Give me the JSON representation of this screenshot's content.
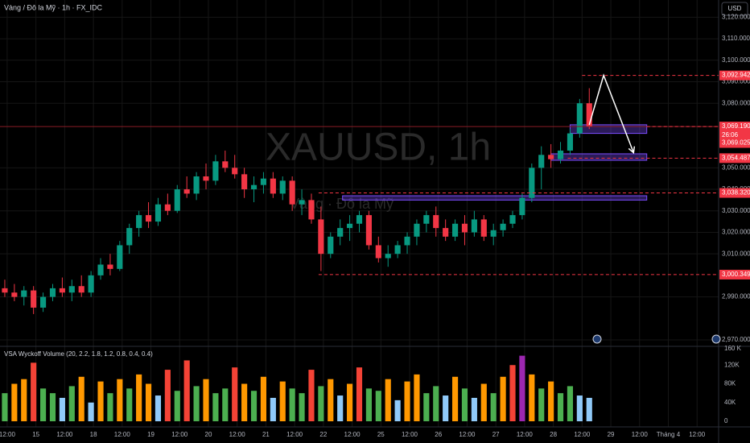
{
  "chart_data": {
    "type": "candlestick",
    "title": "Vàng / Đô la Mỹ · 1h · FX_IDC",
    "currency": "USD",
    "watermark": "XAUUSD, 1h",
    "watermark_sub": "Vàng · Đô la Mỹ",
    "up_color": "#089981",
    "down_color": "#f23645",
    "grid": true,
    "xlim": [
      0,
      300
    ],
    "ylim": [
      2967,
      3128
    ],
    "x": [
      2,
      6,
      10,
      14,
      18,
      22,
      26,
      30,
      34,
      38,
      42,
      46,
      50,
      54,
      58,
      62,
      66,
      70,
      74,
      78,
      82,
      86,
      90,
      94,
      98,
      102,
      106,
      110,
      114,
      118,
      122,
      126,
      130,
      134,
      138,
      142,
      146,
      150,
      154,
      158,
      162,
      166,
      170,
      174,
      178,
      182,
      186,
      190,
      194,
      198,
      202,
      206,
      210,
      214,
      218,
      222,
      226,
      230,
      234,
      238,
      242,
      246
    ],
    "open": [
      2994,
      2992,
      2990,
      2993,
      2985,
      2990,
      2994,
      2992,
      2995,
      2992,
      3000,
      3005,
      3003,
      3014,
      3022,
      3028,
      3025,
      3033,
      3030,
      3040,
      3038,
      3046,
      3044,
      3053,
      3050,
      3047,
      3040,
      3042,
      3045,
      3038,
      3044,
      3033,
      3035,
      3026,
      3010,
      3018,
      3022,
      3024,
      3028,
      3014,
      3008,
      3010,
      3014,
      3018,
      3024,
      3028,
      3022,
      3018,
      3024,
      3020,
      3026,
      3018,
      3021,
      3024,
      3028,
      3036,
      3050,
      3056,
      3054,
      3058,
      3066,
      3080
    ],
    "high": [
      2998,
      2996,
      2995,
      2995,
      2992,
      2996,
      2999,
      2998,
      3000,
      3002,
      3008,
      3010,
      3016,
      3024,
      3030,
      3034,
      3036,
      3038,
      3042,
      3046,
      3048,
      3052,
      3056,
      3058,
      3056,
      3050,
      3046,
      3048,
      3048,
      3046,
      3046,
      3040,
      3038,
      3032,
      3020,
      3026,
      3028,
      3030,
      3030,
      3018,
      3014,
      3016,
      3020,
      3026,
      3030,
      3032,
      3026,
      3026,
      3028,
      3030,
      3028,
      3024,
      3026,
      3030,
      3038,
      3052,
      3060,
      3061,
      3062,
      3068,
      3082,
      3087
    ],
    "low": [
      2990,
      2988,
      2986,
      2982,
      2983,
      2988,
      2990,
      2988,
      2990,
      2990,
      2998,
      3000,
      3002,
      3010,
      3018,
      3022,
      3023,
      3028,
      3029,
      3036,
      3035,
      3040,
      3042,
      3048,
      3045,
      3036,
      3034,
      3038,
      3036,
      3035,
      3030,
      3028,
      3024,
      3002,
      3008,
      3014,
      3016,
      3020,
      3012,
      3006,
      3004,
      3008,
      3010,
      3014,
      3020,
      3018,
      3016,
      3016,
      3014,
      3018,
      3016,
      3014,
      3018,
      3022,
      3026,
      3034,
      3040,
      3050,
      3052,
      3056,
      3064,
      3068
    ],
    "close": [
      2992,
      2990,
      2993,
      2985,
      2990,
      2994,
      2992,
      2995,
      2992,
      3000,
      3005,
      3003,
      3014,
      3022,
      3028,
      3025,
      3033,
      3030,
      3040,
      3038,
      3046,
      3044,
      3053,
      3050,
      3047,
      3040,
      3042,
      3045,
      3038,
      3044,
      3033,
      3035,
      3026,
      3010,
      3018,
      3022,
      3024,
      3028,
      3014,
      3008,
      3010,
      3014,
      3018,
      3024,
      3028,
      3022,
      3018,
      3024,
      3020,
      3026,
      3018,
      3021,
      3024,
      3028,
      3036,
      3050,
      3056,
      3054,
      3058,
      3066,
      3080,
      3069.19
    ],
    "volume_title": "VSA Wyckoff Volume (20, 2.2, 1.8, 1.2, 0.8, 0.4, 0.4)",
    "volume": [
      60000,
      80000,
      90000,
      125000,
      70000,
      60000,
      50000,
      75000,
      95000,
      40000,
      85000,
      60000,
      90000,
      70000,
      100000,
      80000,
      55000,
      110000,
      65000,
      130000,
      75000,
      90000,
      60000,
      70000,
      115000,
      80000,
      65000,
      95000,
      50000,
      85000,
      70000,
      60000,
      110000,
      75000,
      90000,
      55000,
      80000,
      115000,
      70000,
      65000,
      90000,
      45000,
      85000,
      100000,
      60000,
      75000,
      55000,
      95000,
      70000,
      50000,
      80000,
      60000,
      95000,
      120000,
      140000,
      100000,
      70000,
      85000,
      60000,
      75000,
      55000,
      50000
    ],
    "volume_colors": [
      "#4caf50",
      "#ff9800",
      "#ff9800",
      "#f44336",
      "#4caf50",
      "#4caf50",
      "#90caf9",
      "#4caf50",
      "#ff9800",
      "#90caf9",
      "#ff9800",
      "#4caf50",
      "#ff9800",
      "#4caf50",
      "#ff9800",
      "#ff9800",
      "#90caf9",
      "#f44336",
      "#4caf50",
      "#f44336",
      "#4caf50",
      "#ff9800",
      "#4caf50",
      "#4caf50",
      "#f44336",
      "#ff9800",
      "#4caf50",
      "#ff9800",
      "#90caf9",
      "#ff9800",
      "#4caf50",
      "#4caf50",
      "#f44336",
      "#4caf50",
      "#ff9800",
      "#90caf9",
      "#ff9800",
      "#f44336",
      "#4caf50",
      "#4caf50",
      "#ff9800",
      "#90caf9",
      "#ff9800",
      "#ff9800",
      "#4caf50",
      "#4caf50",
      "#90caf9",
      "#ff9800",
      "#4caf50",
      "#90caf9",
      "#ff9800",
      "#4caf50",
      "#ff9800",
      "#f44336",
      "#9c27b0",
      "#ff9800",
      "#4caf50",
      "#ff9800",
      "#4caf50",
      "#4caf50",
      "#90caf9",
      "#90caf9"
    ],
    "vylim": [
      -12000,
      160000
    ],
    "vyticks": [
      {
        "value": 0,
        "label": "0"
      },
      {
        "value": 40000,
        "label": "40K"
      },
      {
        "value": 80000,
        "label": "80K"
      },
      {
        "value": 120000,
        "label": "120K"
      },
      {
        "value": 160000,
        "label": "160 K"
      }
    ],
    "yticks": [
      {
        "value": 3120,
        "label": "3,120.000"
      },
      {
        "value": 3110,
        "label": "3,110.000"
      },
      {
        "value": 3100,
        "label": "3,100.000"
      },
      {
        "value": 3090,
        "label": "3,090.000"
      },
      {
        "value": 3080,
        "label": "3,080.000"
      },
      {
        "value": 3050,
        "label": "3,050.000"
      },
      {
        "value": 3040,
        "label": "3,040.000"
      },
      {
        "value": 3030,
        "label": "3,030.000"
      },
      {
        "value": 3020,
        "label": "3,020.000"
      },
      {
        "value": 3010,
        "label": "3,010.000"
      },
      {
        "value": 2990,
        "label": "2,990.000"
      },
      {
        "value": 2970,
        "label": "2,970.000"
      }
    ],
    "xticks": [
      {
        "value": 3,
        "label": "12:00"
      },
      {
        "value": 15,
        "label": "15"
      },
      {
        "value": 27,
        "label": "12:00"
      },
      {
        "value": 39,
        "label": "18"
      },
      {
        "value": 51,
        "label": "12:00"
      },
      {
        "value": 63,
        "label": "19"
      },
      {
        "value": 75,
        "label": "12:00"
      },
      {
        "value": 87,
        "label": "20"
      },
      {
        "value": 99,
        "label": "12:00"
      },
      {
        "value": 111,
        "label": "21"
      },
      {
        "value": 123,
        "label": "12:00"
      },
      {
        "value": 135,
        "label": "22"
      },
      {
        "value": 147,
        "label": "12:00"
      },
      {
        "value": 159,
        "label": "25"
      },
      {
        "value": 171,
        "label": "12:00"
      },
      {
        "value": 183,
        "label": "26"
      },
      {
        "value": 195,
        "label": "12:00"
      },
      {
        "value": 207,
        "label": "27"
      },
      {
        "value": 219,
        "label": "12:00"
      },
      {
        "value": 231,
        "label": "28"
      },
      {
        "value": 243,
        "label": "12:00"
      },
      {
        "value": 255,
        "label": "29"
      },
      {
        "value": 267,
        "label": "12:00"
      },
      {
        "value": 279,
        "label": "Tháng 4"
      },
      {
        "value": 291,
        "label": "12:00"
      }
    ],
    "levels": [
      {
        "value": 3092.942,
        "label": "3,092.942",
        "from": 243
      },
      {
        "value": 3054.487,
        "label": "3,054.487",
        "from": 237
      },
      {
        "value": 3038.32,
        "label": "3,038.320",
        "from": 133
      },
      {
        "value": 3000.349,
        "label": "3,000.349",
        "from": 133
      }
    ],
    "last_price": {
      "value": 3069.19,
      "label": "3,069.190",
      "countdown": "26:06"
    },
    "bid_price": {
      "value": 3069.025,
      "label": "3,069.025"
    },
    "zones": [
      {
        "x": [
          238,
          270
        ],
        "y": [
          3066,
          3070
        ]
      },
      {
        "x": [
          230,
          270
        ],
        "y": [
          3053.5,
          3056.5
        ]
      },
      {
        "x": [
          143,
          270
        ],
        "y": [
          3035,
          3037
        ]
      }
    ],
    "arrow": {
      "x": [
        246,
        252,
        264.5
      ],
      "y": [
        3070,
        3093,
        3057
      ]
    }
  }
}
